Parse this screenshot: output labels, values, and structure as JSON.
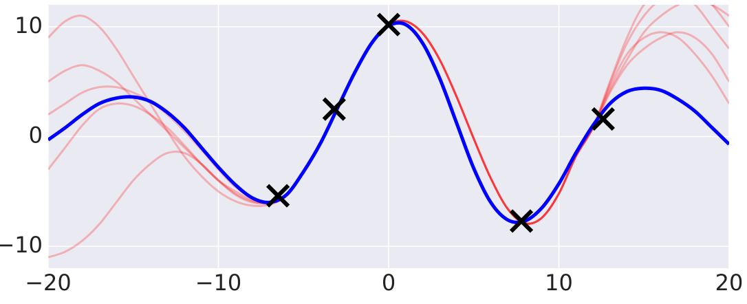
{
  "chart_data": {
    "type": "line",
    "x": [
      -20,
      -19,
      -18,
      -17,
      -16,
      -15,
      -14,
      -13,
      -12,
      -11,
      -10,
      -9,
      -8,
      -7,
      -6,
      -5,
      -4,
      -3,
      -2,
      -1,
      0,
      1,
      2,
      3,
      4,
      5,
      6,
      7,
      8,
      9,
      10,
      11,
      12,
      13,
      14,
      15,
      16,
      17,
      18,
      19,
      20
    ],
    "series": [
      {
        "color": "#ff0000",
        "alpha": 0.25,
        "values": [
          5,
          6,
          6.5,
          6,
          5,
          3.5,
          2,
          0.5,
          -1,
          -2.5,
          -4,
          -5,
          -5.8,
          -6,
          -5.4,
          -3.3,
          -0.7,
          2.6,
          5.8,
          8.6,
          10.2,
          10.5,
          9.4,
          7,
          3.6,
          -0.2,
          -3.8,
          -6.6,
          -7.9,
          -7.4,
          -5.2,
          -1.8,
          0.8,
          4.2,
          7,
          9.5,
          11,
          12,
          12.5,
          12,
          11
        ]
      },
      {
        "color": "#ff0000",
        "alpha": 0.25,
        "values": [
          -3,
          -1,
          1,
          2.5,
          3,
          2.8,
          2,
          0.8,
          -0.8,
          -2.5,
          -4,
          -5.2,
          -5.9,
          -6.1,
          -5.4,
          -3.3,
          -0.7,
          2.6,
          5.8,
          8.6,
          10.2,
          10.5,
          9.4,
          7,
          3.6,
          -0.2,
          -3.8,
          -6.6,
          -7.9,
          -7.4,
          -5.2,
          -1.8,
          0.8,
          4.8,
          8.5,
          11,
          12.5,
          13,
          12,
          10,
          8
        ]
      },
      {
        "color": "#ff0000",
        "alpha": 0.25,
        "values": [
          9,
          10.5,
          11,
          10,
          8,
          5.5,
          3,
          0.5,
          -1.8,
          -3.6,
          -5,
          -5.9,
          -6.3,
          -6.2,
          -5.4,
          -3.3,
          -0.7,
          2.6,
          5.8,
          8.6,
          10.2,
          10.5,
          9.4,
          7,
          3.6,
          -0.2,
          -3.8,
          -6.6,
          -7.9,
          -7.4,
          -5.2,
          -1.8,
          0.8,
          4,
          6.5,
          8,
          9,
          9.5,
          9,
          7.5,
          5
        ]
      },
      {
        "color": "#ff0000",
        "alpha": 0.25,
        "values": [
          -11,
          -10.5,
          -9.5,
          -8,
          -6,
          -4,
          -2.5,
          -1.5,
          -1.5,
          -2.5,
          -4,
          -5.3,
          -6,
          -6,
          -5.4,
          -3.3,
          -0.7,
          2.6,
          5.8,
          8.6,
          10.2,
          10.5,
          9.4,
          7,
          3.6,
          -0.2,
          -3.8,
          -6.6,
          -7.9,
          -7.4,
          -5.2,
          -1.8,
          0.8,
          5,
          9,
          12,
          13,
          13,
          13,
          12,
          10
        ]
      },
      {
        "color": "#ff0000",
        "alpha": 0.25,
        "values": [
          2,
          3,
          4,
          4.5,
          4.5,
          4,
          3.2,
          2,
          0.5,
          -1.2,
          -3,
          -4.6,
          -5.6,
          -6,
          -5.4,
          -3.3,
          -0.7,
          2.6,
          5.8,
          8.6,
          10.2,
          10.5,
          9.4,
          7,
          3.6,
          -0.2,
          -3.8,
          -6.6,
          -7.9,
          -7.4,
          -5.2,
          -1.8,
          0.8,
          4.5,
          7.5,
          9,
          9.5,
          9,
          7.5,
          5.5,
          3
        ]
      },
      {
        "color": "#0000ff",
        "alpha": 1,
        "values": [
          -0.3,
          0.8,
          2,
          3,
          3.5,
          3.6,
          3.2,
          2.2,
          0.8,
          -1,
          -2.8,
          -4.4,
          -5.6,
          -6,
          -5.3,
          -3.2,
          -0.6,
          2.6,
          5.8,
          8.5,
          10.1,
          10.2,
          8.5,
          5.3,
          1.2,
          -2.9,
          -6,
          -7.6,
          -7.7,
          -6.5,
          -4.3,
          -1.5,
          1,
          3,
          4.1,
          4.4,
          4.2,
          3.4,
          2.3,
          0.8,
          -0.7
        ]
      }
    ],
    "points": {
      "color": "#000000",
      "x": [
        -6.5,
        -3.2,
        0,
        7.8,
        12.6
      ],
      "y": [
        -5.4,
        2.5,
        10.2,
        -7.7,
        1.6
      ]
    },
    "xlim": [
      -20,
      20
    ],
    "ylim": [
      -12,
      12
    ],
    "xticks": [
      {
        "value": -20,
        "label": "−20"
      },
      {
        "value": -10,
        "label": "−10"
      },
      0,
      10,
      20
    ],
    "yticks": [
      {
        "value": -10,
        "label": "−10"
      },
      0,
      10
    ],
    "grid": true
  }
}
